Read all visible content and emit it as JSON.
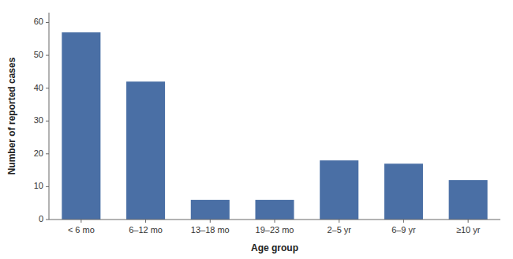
{
  "chart_data": {
    "type": "bar",
    "categories": [
      "< 6 mo",
      "6–12 mo",
      "13–18 mo",
      "19–23 mo",
      "2–5 yr",
      "6–9 yr",
      "≥10 yr"
    ],
    "values": [
      57,
      42,
      6,
      6,
      18,
      17,
      12
    ],
    "color": "#4a6fa5",
    "xlabel": "Age group",
    "ylabel": "Number of reported cases",
    "ylim": [
      0,
      63
    ],
    "yticks": [
      0,
      10,
      20,
      30,
      40,
      50,
      60
    ],
    "grid": false
  }
}
